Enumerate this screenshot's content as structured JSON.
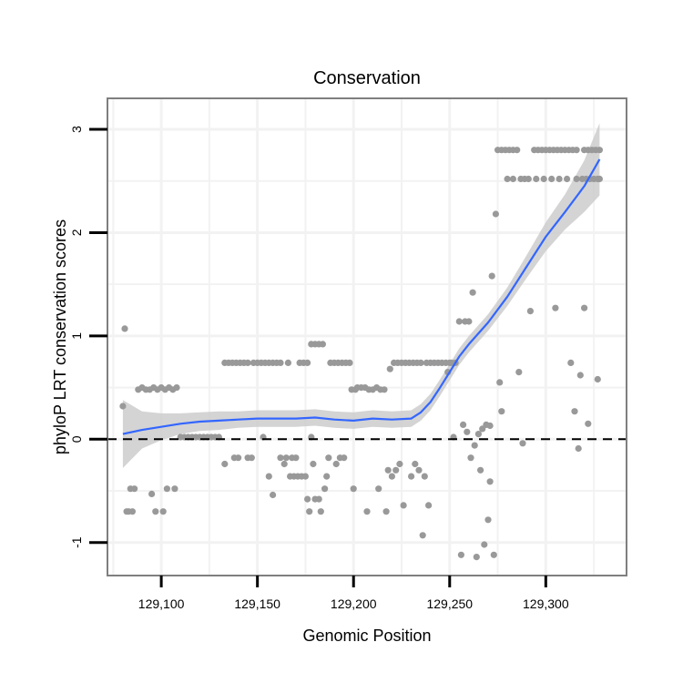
{
  "chart_data": {
    "type": "scatter",
    "title": "Conservation",
    "xlabel": "Genomic Position",
    "ylabel": "phyloP LRT conservation scores",
    "xlim": [
      129072,
      129342
    ],
    "ylim": [
      -1.32,
      3.3
    ],
    "x_ticks": [
      129100,
      129150,
      129200,
      129250,
      129300
    ],
    "x_tick_labels": [
      "129,100",
      "129,150",
      "129,200",
      "129,250",
      "129,300"
    ],
    "y_ticks": [
      -1,
      0,
      1,
      2,
      3
    ],
    "y_tick_labels": [
      "-1",
      "0",
      "1",
      "2",
      "3"
    ],
    "x_minor_gridlines": [
      129075,
      129125,
      129175,
      129225,
      129275,
      129325
    ],
    "y_minor_gridlines": [
      -0.5,
      0.5,
      1.5,
      2.5
    ],
    "reference_line": {
      "y": 0,
      "style": "dashed"
    },
    "colors": {
      "points": "#999999",
      "smooth": "#3366ff",
      "ribbon": "#cccccc",
      "grid": "#f2f2f2",
      "border": "#7f7f7f"
    },
    "points": [
      [
        129080,
        0.32
      ],
      [
        129081,
        1.07
      ],
      [
        129082,
        -0.7
      ],
      [
        129083,
        -0.7
      ],
      [
        129084,
        -0.48
      ],
      [
        129085,
        -0.7
      ],
      [
        129086,
        -0.48
      ],
      [
        129088,
        0.48
      ],
      [
        129090,
        0.5
      ],
      [
        129092,
        0.48
      ],
      [
        129094,
        0.48
      ],
      [
        129095,
        -0.53
      ],
      [
        129096,
        0.5
      ],
      [
        129097,
        -0.7
      ],
      [
        129098,
        0.48
      ],
      [
        129100,
        0.5
      ],
      [
        129101,
        -0.7
      ],
      [
        129102,
        0.48
      ],
      [
        129103,
        -0.48
      ],
      [
        129104,
        0.5
      ],
      [
        129106,
        0.48
      ],
      [
        129107,
        -0.48
      ],
      [
        129108,
        0.5
      ],
      [
        129110,
        0.02
      ],
      [
        129112,
        0.02
      ],
      [
        129114,
        0.02
      ],
      [
        129116,
        0.02
      ],
      [
        129118,
        0.02
      ],
      [
        129120,
        0.02
      ],
      [
        129122,
        0.02
      ],
      [
        129124,
        0.02
      ],
      [
        129126,
        0.02
      ],
      [
        129128,
        0.02
      ],
      [
        129130,
        0.02
      ],
      [
        129133,
        0.74
      ],
      [
        129133,
        -0.24
      ],
      [
        129135,
        0.74
      ],
      [
        129137,
        0.74
      ],
      [
        129138,
        -0.18
      ],
      [
        129139,
        0.74
      ],
      [
        129140,
        -0.18
      ],
      [
        129141,
        0.74
      ],
      [
        129143,
        0.74
      ],
      [
        129145,
        -0.18
      ],
      [
        129145,
        0.74
      ],
      [
        129147,
        -0.18
      ],
      [
        129148,
        0.74
      ],
      [
        129150,
        0.74
      ],
      [
        129152,
        0.74
      ],
      [
        129153,
        0.02
      ],
      [
        129154,
        0.74
      ],
      [
        129156,
        0.74
      ],
      [
        129156,
        -0.36
      ],
      [
        129158,
        0.74
      ],
      [
        129158,
        -0.54
      ],
      [
        129160,
        0.74
      ],
      [
        129162,
        -0.18
      ],
      [
        129162,
        0.74
      ],
      [
        129164,
        -0.24
      ],
      [
        129165,
        -0.18
      ],
      [
        129166,
        0.74
      ],
      [
        129167,
        -0.36
      ],
      [
        129168,
        -0.18
      ],
      [
        129169,
        -0.36
      ],
      [
        129170,
        -0.18
      ],
      [
        129171,
        -0.36
      ],
      [
        129172,
        0.74
      ],
      [
        129173,
        -0.36
      ],
      [
        129174,
        0.74
      ],
      [
        129175,
        -0.36
      ],
      [
        129176,
        -0.58
      ],
      [
        129176,
        0.74
      ],
      [
        129177,
        -0.7
      ],
      [
        129178,
        0.92
      ],
      [
        129178,
        0.02
      ],
      [
        129179,
        -0.24
      ],
      [
        129180,
        -0.58
      ],
      [
        129180,
        0.92
      ],
      [
        129182,
        -0.58
      ],
      [
        129182,
        0.92
      ],
      [
        129183,
        -0.7
      ],
      [
        129184,
        0.92
      ],
      [
        129185,
        -0.48
      ],
      [
        129186,
        -0.36
      ],
      [
        129187,
        -0.18
      ],
      [
        129188,
        0.74
      ],
      [
        129190,
        0.74
      ],
      [
        129191,
        -0.24
      ],
      [
        129192,
        0.74
      ],
      [
        129193,
        -0.18
      ],
      [
        129194,
        0.74
      ],
      [
        129195,
        -0.18
      ],
      [
        129196,
        0.74
      ],
      [
        129198,
        0.74
      ],
      [
        129199,
        0.48
      ],
      [
        129200,
        -0.48
      ],
      [
        129201,
        0.48
      ],
      [
        129202,
        0.5
      ],
      [
        129204,
        0.5
      ],
      [
        129206,
        0.5
      ],
      [
        129207,
        -0.7
      ],
      [
        129208,
        0.48
      ],
      [
        129210,
        0.48
      ],
      [
        129212,
        0.5
      ],
      [
        129213,
        -0.48
      ],
      [
        129214,
        0.48
      ],
      [
        129216,
        0.48
      ],
      [
        129217,
        -0.7
      ],
      [
        129218,
        -0.3
      ],
      [
        129219,
        0.68
      ],
      [
        129220,
        -0.36
      ],
      [
        129221,
        0.74
      ],
      [
        129222,
        -0.3
      ],
      [
        129223,
        0.74
      ],
      [
        129224,
        -0.24
      ],
      [
        129225,
        0.74
      ],
      [
        129226,
        -0.64
      ],
      [
        129227,
        0.74
      ],
      [
        129229,
        0.74
      ],
      [
        129230,
        -0.36
      ],
      [
        129231,
        0.74
      ],
      [
        129232,
        -0.24
      ],
      [
        129233,
        0.74
      ],
      [
        129234,
        -0.3
      ],
      [
        129235,
        0.74
      ],
      [
        129236,
        -0.93
      ],
      [
        129237,
        -0.36
      ],
      [
        129238,
        0.74
      ],
      [
        129239,
        -0.64
      ],
      [
        129240,
        0.74
      ],
      [
        129242,
        0.74
      ],
      [
        129244,
        0.74
      ],
      [
        129246,
        0.74
      ],
      [
        129248,
        0.74
      ],
      [
        129249,
        0.65
      ],
      [
        129250,
        0.74
      ],
      [
        129251,
        0.74
      ],
      [
        129252,
        0.02
      ],
      [
        129253,
        0.74
      ],
      [
        129255,
        1.14
      ],
      [
        129256,
        -1.12
      ],
      [
        129257,
        0.14
      ],
      [
        129258,
        1.14
      ],
      [
        129259,
        0.07
      ],
      [
        129260,
        1.14
      ],
      [
        129261,
        -0.18
      ],
      [
        129262,
        1.42
      ],
      [
        129263,
        -0.06
      ],
      [
        129264,
        -1.14
      ],
      [
        129265,
        0.05
      ],
      [
        129266,
        -0.3
      ],
      [
        129267,
        0.1
      ],
      [
        129268,
        -1.02
      ],
      [
        129269,
        0.14
      ],
      [
        129270,
        -0.78
      ],
      [
        129271,
        0.13
      ],
      [
        129271,
        -0.41
      ],
      [
        129272,
        1.58
      ],
      [
        129273,
        -1.12
      ],
      [
        129274,
        2.18
      ],
      [
        129275,
        2.8
      ],
      [
        129276,
        0.55
      ],
      [
        129277,
        0.27
      ],
      [
        129277,
        2.8
      ],
      [
        129279,
        2.8
      ],
      [
        129280,
        2.52
      ],
      [
        129281,
        2.8
      ],
      [
        129283,
        2.52
      ],
      [
        129283,
        2.8
      ],
      [
        129285,
        2.8
      ],
      [
        129286,
        0.65
      ],
      [
        129287,
        2.52
      ],
      [
        129288,
        -0.04
      ],
      [
        129289,
        2.52
      ],
      [
        129291,
        2.52
      ],
      [
        129292,
        1.24
      ],
      [
        129294,
        2.8
      ],
      [
        129295,
        2.52
      ],
      [
        129296,
        2.8
      ],
      [
        129298,
        2.8
      ],
      [
        129299,
        2.52
      ],
      [
        129300,
        2.8
      ],
      [
        129302,
        2.8
      ],
      [
        129303,
        2.52
      ],
      [
        129304,
        2.8
      ],
      [
        129305,
        1.27
      ],
      [
        129306,
        2.8
      ],
      [
        129307,
        2.52
      ],
      [
        129308,
        2.8
      ],
      [
        129310,
        2.8
      ],
      [
        129311,
        2.52
      ],
      [
        129312,
        2.8
      ],
      [
        129313,
        0.74
      ],
      [
        129314,
        2.8
      ],
      [
        129315,
        0.27
      ],
      [
        129316,
        2.52
      ],
      [
        129316,
        2.8
      ],
      [
        129317,
        -0.09
      ],
      [
        129318,
        0.62
      ],
      [
        129319,
        2.52
      ],
      [
        129320,
        1.27
      ],
      [
        129320,
        2.8
      ],
      [
        129321,
        2.52
      ],
      [
        129322,
        0.15
      ],
      [
        129322,
        2.8
      ],
      [
        129323,
        2.52
      ],
      [
        129324,
        2.8
      ],
      [
        129325,
        2.52
      ],
      [
        129326,
        2.8
      ],
      [
        129327,
        2.52
      ],
      [
        129327,
        0.58
      ],
      [
        129328,
        2.8
      ],
      [
        129328,
        2.52
      ]
    ],
    "smooth_line": {
      "x": [
        129080,
        129090,
        129100,
        129110,
        129120,
        129130,
        129140,
        129150,
        129160,
        129170,
        129180,
        129190,
        129200,
        129210,
        129220,
        129230,
        129235,
        129240,
        129245,
        129250,
        129255,
        129260,
        129270,
        129280,
        129290,
        129300,
        129310,
        129320,
        129328
      ],
      "y": [
        0.05,
        0.09,
        0.12,
        0.15,
        0.17,
        0.18,
        0.19,
        0.2,
        0.2,
        0.2,
        0.21,
        0.19,
        0.18,
        0.2,
        0.19,
        0.2,
        0.26,
        0.36,
        0.5,
        0.65,
        0.8,
        0.92,
        1.13,
        1.38,
        1.67,
        1.96,
        2.2,
        2.45,
        2.71
      ]
    },
    "confidence_band": {
      "x": [
        129080,
        129090,
        129100,
        129110,
        129120,
        129130,
        129140,
        129150,
        129160,
        129170,
        129180,
        129190,
        129200,
        129210,
        129220,
        129230,
        129235,
        129240,
        129245,
        129250,
        129255,
        129260,
        129270,
        129280,
        129290,
        129300,
        129310,
        129320,
        129328
      ],
      "lower": [
        -0.28,
        -0.09,
        -0.01,
        0.05,
        0.08,
        0.09,
        0.11,
        0.12,
        0.12,
        0.12,
        0.13,
        0.11,
        0.1,
        0.12,
        0.11,
        0.12,
        0.18,
        0.28,
        0.42,
        0.57,
        0.72,
        0.84,
        1.05,
        1.29,
        1.56,
        1.82,
        2.03,
        2.2,
        2.36
      ],
      "upper": [
        0.38,
        0.27,
        0.25,
        0.25,
        0.26,
        0.27,
        0.27,
        0.28,
        0.28,
        0.28,
        0.29,
        0.27,
        0.26,
        0.28,
        0.27,
        0.28,
        0.34,
        0.44,
        0.58,
        0.73,
        0.88,
        1.0,
        1.21,
        1.47,
        1.78,
        2.1,
        2.37,
        2.7,
        3.06
      ]
    }
  }
}
